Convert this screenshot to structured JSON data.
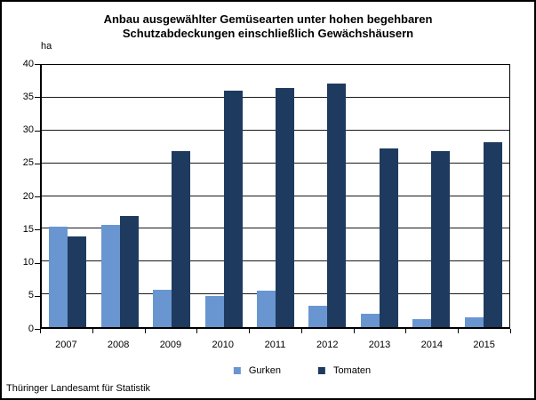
{
  "title": {
    "line1": "Anbau ausgewählter Gemüsearten unter hohen begehbaren",
    "line2": "Schutzabdeckungen einschließlich Gewächshäusern"
  },
  "y_unit_label": "ha",
  "source": "Thüringer Landesamt für Statistik",
  "colors": {
    "gurken": "#6996D0",
    "tomaten": "#1E3A5F",
    "axis": "#000000",
    "gridline": "#1a1a1a"
  },
  "legend": [
    {
      "label": "Gurken",
      "color": "#6996D0"
    },
    {
      "label": "Tomaten",
      "color": "#1E3A5F"
    }
  ],
  "chart_data": {
    "type": "bar",
    "title": "Anbau ausgewählter Gemüsearten unter hohen begehbaren Schutzabdeckungen einschließlich Gewächshäusern",
    "categories": [
      "2007",
      "2008",
      "2009",
      "2010",
      "2011",
      "2012",
      "2013",
      "2014",
      "2015"
    ],
    "series": [
      {
        "name": "Gurken",
        "color": "#6996D0",
        "values": [
          15.3,
          15.6,
          5.7,
          4.7,
          5.5,
          3.3,
          2.1,
          1.2,
          1.5
        ]
      },
      {
        "name": "Tomaten",
        "color": "#1E3A5F",
        "values": [
          13.9,
          16.9,
          26.9,
          36.1,
          36.5,
          37.2,
          27.3,
          26.9,
          28.2
        ]
      }
    ],
    "xlabel": "",
    "ylabel": "ha",
    "ylim": [
      0,
      40
    ],
    "yticks": [
      0,
      5,
      10,
      15,
      20,
      25,
      30,
      35,
      40
    ],
    "grid": true,
    "legend_position": "bottom"
  }
}
